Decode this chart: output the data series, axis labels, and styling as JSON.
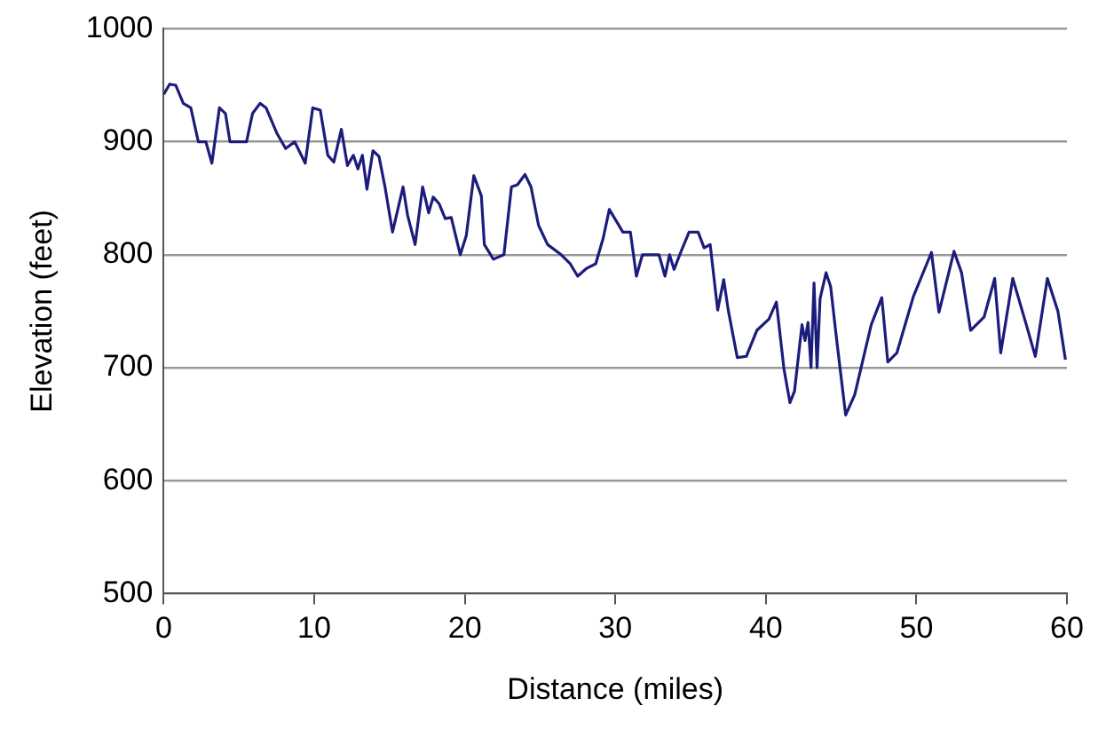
{
  "chart_data": {
    "type": "line",
    "xlabel": "Distance (miles)",
    "ylabel": "Elevation (feet)",
    "xlim": [
      0,
      60
    ],
    "xticks": [
      0,
      10,
      20,
      30,
      40,
      50,
      60
    ],
    "ylim": [
      500,
      1000
    ],
    "yticks": [
      500,
      600,
      700,
      800,
      900,
      1000
    ],
    "grid": "y",
    "legend": false,
    "marker": "none",
    "line_style": "solid",
    "series": [
      {
        "color": "#1c1c7c",
        "x": [
          0,
          0.4,
          0.8,
          1.3,
          1.8,
          2.3,
          2.8,
          3.2,
          3.7,
          4.1,
          4.4,
          5.5,
          5.9,
          6.4,
          6.8,
          7.5,
          8.1,
          8.7,
          9.4,
          9.9,
          10.4,
          10.9,
          11.3,
          11.8,
          12.2,
          12.6,
          12.9,
          13.2,
          13.5,
          13.9,
          14.3,
          14.7,
          15.2,
          15.9,
          16.2,
          16.7,
          17.2,
          17.6,
          17.9,
          18.3,
          18.7,
          19.1,
          19.7,
          20.1,
          20.6,
          21.1,
          21.3,
          21.9,
          22.6,
          23.1,
          23.5,
          24.0,
          24.4,
          24.9,
          25.5,
          26.4,
          27.0,
          27.5,
          28.1,
          28.7,
          29.2,
          29.6,
          30.1,
          30.5,
          31.0,
          31.4,
          31.8,
          32.9,
          33.3,
          33.6,
          33.9,
          34.4,
          34.9,
          35.5,
          35.9,
          36.3,
          36.8,
          37.2,
          37.5,
          38.1,
          38.7,
          39.4,
          40.2,
          40.7,
          41.2,
          41.6,
          41.9,
          42.4,
          42.6,
          42.8,
          43.0,
          43.2,
          43.4,
          43.6,
          44.0,
          44.3,
          44.7,
          45.3,
          45.9,
          47.0,
          47.7,
          48.1,
          48.7,
          49.8,
          51.0,
          51.5,
          52.5,
          53.0,
          53.6,
          54.5,
          55.2,
          55.6,
          56.4,
          57.3,
          57.9,
          58.7,
          59.4,
          59.9
        ],
        "values": [
          942,
          951,
          950,
          934,
          930,
          900,
          900,
          881,
          930,
          925,
          900,
          900,
          925,
          934,
          930,
          908,
          894,
          900,
          881,
          930,
          928,
          888,
          882,
          911,
          879,
          888,
          876,
          888,
          858,
          892,
          887,
          860,
          820,
          860,
          835,
          809,
          860,
          837,
          851,
          845,
          832,
          833,
          800,
          817,
          870,
          852,
          809,
          796,
          800,
          860,
          862,
          871,
          860,
          826,
          809,
          800,
          792,
          781,
          788,
          792,
          815,
          840,
          829,
          820,
          820,
          781,
          800,
          800,
          781,
          800,
          787,
          804,
          820,
          820,
          806,
          809,
          751,
          778,
          751,
          709,
          710,
          733,
          743,
          758,
          699,
          669,
          679,
          738,
          724,
          740,
          700,
          775,
          700,
          761,
          784,
          772,
          725,
          658,
          676,
          738,
          762,
          705,
          713,
          763,
          802,
          749,
          803,
          784,
          733,
          745,
          779,
          713,
          779,
          738,
          710,
          779,
          750,
          707
        ]
      }
    ]
  }
}
